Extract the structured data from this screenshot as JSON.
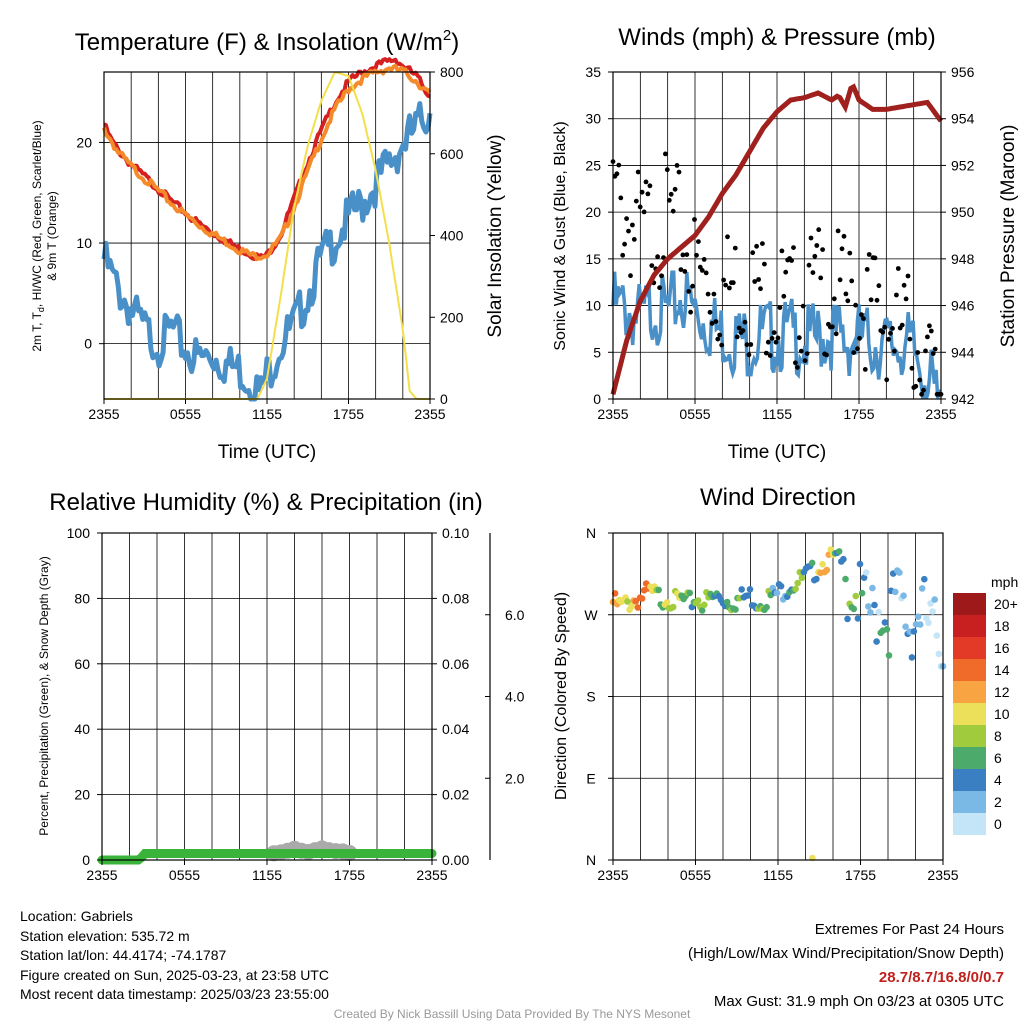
{
  "chart_data": [
    {
      "type": "line",
      "title_main": "Temperature (F) & Insolation (W/m",
      "title_sup": "2",
      "title_end": ")",
      "xlabel": "Time (UTC)",
      "ylabel_left_1": "2m T, T",
      "ylabel_left_sub": "d",
      "ylabel_left_2": ", HI/WC (Red, Green, Scarlet/Blue)",
      "ylabel_left_3": "& 9m T (Orange)",
      "ylabel_right": "Solar Insolation (Yellow)",
      "x_ticks": [
        "2355",
        "0555",
        "1155",
        "1755",
        "2355"
      ],
      "x_hours": [
        0,
        24
      ],
      "ylim": [
        -5.5,
        27
      ],
      "y_ticks": [
        0,
        10,
        20
      ],
      "y2lim": [
        0,
        800
      ],
      "y2_ticks": [
        0,
        200,
        400,
        600,
        800
      ],
      "series": [
        {
          "color": "#d42020",
          "x": [
            0,
            0.5,
            1,
            2,
            3,
            4,
            5,
            6,
            7,
            8,
            9,
            10,
            11,
            11.5,
            12,
            13,
            14,
            15,
            16,
            17,
            18,
            19,
            20,
            21,
            21.5,
            22,
            23,
            24
          ],
          "values": [
            22,
            20.5,
            19.5,
            18,
            16.8,
            15.6,
            14.3,
            13.2,
            12.1,
            11.2,
            10.4,
            9.6,
            9.0,
            8.7,
            9.0,
            11.0,
            14.6,
            18.2,
            21.4,
            24.2,
            26.2,
            27.2,
            27.8,
            28.3,
            28.5,
            27.8,
            26.8,
            24.8
          ]
        },
        {
          "color": "#f58a2a",
          "x": [
            0,
            1,
            2,
            3,
            4,
            5,
            6,
            7,
            8,
            9,
            10,
            11,
            12,
            13,
            14,
            15,
            16,
            17,
            18,
            19,
            20,
            21,
            22,
            23,
            24
          ],
          "values": [
            21.6,
            19.3,
            17.8,
            16.6,
            15.4,
            14.1,
            13.0,
            12.0,
            11.1,
            10.3,
            9.5,
            8.9,
            9.1,
            10.6,
            13.8,
            17.3,
            20.6,
            23.5,
            25.5,
            26.5,
            27.2,
            27.6,
            27.3,
            26.3,
            24.9
          ]
        },
        {
          "color": "#4a90c8",
          "x": [
            0,
            0.5,
            1,
            2,
            3,
            4,
            5,
            6,
            7,
            8,
            9,
            10,
            11,
            11.5,
            12,
            13,
            14,
            15,
            16,
            17,
            18,
            19,
            20,
            21,
            22,
            23,
            23.5,
            24
          ],
          "values": [
            9.5,
            8,
            6.5,
            4.5,
            2.5,
            1,
            2.5,
            0.5,
            -0.5,
            0,
            -1,
            -1.5,
            -3,
            -4,
            -2,
            1,
            3,
            6,
            9.5,
            11.5,
            13.5,
            15,
            17,
            19,
            21,
            22.5,
            23.5,
            24.2
          ]
        },
        {
          "color": "#f4df4a",
          "axis": "right",
          "x": [
            0,
            2,
            4,
            6,
            8,
            10,
            11.3,
            12,
            13,
            14,
            15,
            16,
            17,
            18,
            19,
            20,
            21,
            22,
            22.5,
            23,
            24
          ],
          "values": [
            0,
            0,
            0,
            0,
            0,
            0,
            0,
            50,
            250,
            470,
            620,
            730,
            800,
            790,
            700,
            560,
            380,
            170,
            20,
            0,
            0
          ]
        }
      ]
    },
    {
      "type": "scatter",
      "title": "Winds (mph) & Pressure (mb)",
      "xlabel": "Time (UTC)",
      "ylabel": "Sonic Wind & Gust (Blue, Black)",
      "ylabel_right": "Station Pressure (Maroon)",
      "x_ticks": [
        "2355",
        "0555",
        "1155",
        "1755",
        "2355"
      ],
      "x_hours": [
        0,
        24
      ],
      "ylim": [
        0,
        35
      ],
      "y_ticks": [
        0,
        5,
        10,
        15,
        20,
        25,
        30,
        35
      ],
      "y2lim": [
        942,
        956
      ],
      "y2_ticks": [
        942,
        944,
        946,
        948,
        950,
        952,
        954,
        956
      ],
      "series": [
        {
          "name": "pressure",
          "color": "#a0201e",
          "axis": "right",
          "x": [
            0,
            1,
            2,
            3,
            4,
            5,
            6,
            7,
            8,
            9,
            10,
            11,
            12,
            13,
            14,
            15,
            16,
            16.5,
            17,
            17.5,
            18,
            19,
            20,
            21,
            22,
            23,
            24
          ],
          "values": [
            942.2,
            944.5,
            946.2,
            947.3,
            948,
            948.5,
            949,
            949.8,
            950.8,
            951.6,
            952.6,
            953.6,
            954.3,
            954.8,
            954.9,
            955.1,
            954.8,
            955.0,
            954.5,
            955.5,
            954.8,
            954.4,
            954.4,
            954.5,
            954.6,
            954.7,
            953.9
          ]
        },
        {
          "name": "wind",
          "color": "#4a90c8",
          "x": [
            0,
            1,
            2,
            3,
            4,
            5,
            6,
            7,
            8,
            9,
            10,
            11,
            12,
            13,
            14,
            15,
            16,
            17,
            18,
            19,
            20,
            21,
            22,
            23,
            24
          ],
          "values": [
            12,
            11.5,
            10.5,
            12,
            11,
            13,
            11.5,
            10,
            9,
            8.5,
            8,
            9,
            8.5,
            9,
            8,
            8.5,
            9,
            8,
            8.5,
            8,
            7.5,
            8,
            7,
            4.5,
            0.5
          ]
        },
        {
          "name": "gust",
          "color": "#000000",
          "x": [
            0,
            1,
            2,
            3,
            4,
            5,
            6,
            7,
            8,
            9,
            10,
            11,
            12,
            13,
            14,
            15,
            16,
            17,
            18,
            19,
            20,
            21,
            22,
            23,
            24
          ],
          "values": [
            25,
            23,
            21,
            22,
            23,
            21,
            17,
            16,
            15,
            15.5,
            15,
            15,
            14,
            13,
            14,
            15,
            15,
            14,
            14,
            13,
            12,
            11,
            10,
            7,
            2
          ]
        }
      ]
    },
    {
      "type": "line",
      "title": "Relative Humidity (%) & Precipitation (in)",
      "ylabel": "Percent, Precipitation (Green), & Snow Depth (Gray)",
      "x_ticks": [
        "2355",
        "0555",
        "1155",
        "1755",
        "2355"
      ],
      "x_hours": [
        0,
        24
      ],
      "ylim": [
        0,
        100
      ],
      "y_ticks": [
        0,
        20,
        40,
        60,
        80,
        100
      ],
      "y2lim": [
        0,
        0.1
      ],
      "y2_ticks": [
        "0.00",
        "0.02",
        "0.04",
        "0.06",
        "0.08",
        "0.10"
      ],
      "y3lim": [
        0,
        8
      ],
      "y3_ticks": [
        "2.0",
        "4.0",
        "6.0"
      ],
      "series": [
        {
          "color": "#3ab33a",
          "x": [
            0,
            2.8,
            3,
            24
          ],
          "values": [
            0,
            0,
            2,
            2
          ]
        },
        {
          "color": "#aaaaaa",
          "x": [
            12.5,
            13,
            13.5,
            14,
            14.5,
            15,
            15.5,
            16,
            16.5,
            17,
            17.5,
            18
          ],
          "values": [
            0.2,
            0.5,
            1,
            1.6,
            1.0,
            0.6,
            1.2,
            1.7,
            1.2,
            0.9,
            0.8,
            0.3
          ]
        }
      ]
    },
    {
      "type": "scatter",
      "title": "Wind Direction",
      "ylabel": "Direction (Colored By Speed)",
      "x_ticks": [
        "2355",
        "0555",
        "1155",
        "1755",
        "2355"
      ],
      "x_hours": [
        0,
        24
      ],
      "y_ticks": [
        "N",
        "W",
        "S",
        "E",
        "N"
      ],
      "ylim": [
        0,
        360
      ],
      "colorbar_title": "mph",
      "colorbar_labels": [
        "20+",
        "18",
        "16",
        "14",
        "12",
        "10",
        "8",
        "6",
        "4",
        "2",
        "0"
      ],
      "colorbar_colors": [
        "#9e1a1a",
        "#c82020",
        "#e23a26",
        "#f06a2a",
        "#f9a443",
        "#ece05a",
        "#9fcb3c",
        "#4cab6a",
        "#3a7fc2",
        "#7ab8e6",
        "#c4e5f7"
      ],
      "series": [
        {
          "name": "direction",
          "x": [
            0,
            0.5,
            1,
            1.5,
            2,
            2.5,
            3,
            3.5,
            4,
            4.5,
            5,
            5.5,
            6,
            6.5,
            7,
            7.5,
            8,
            8.5,
            9,
            9.5,
            10,
            10.5,
            11,
            11.5,
            12,
            12.5,
            13,
            13.5,
            14,
            14.5,
            15,
            15.5,
            16,
            16.5,
            17,
            17.5,
            18,
            18.5,
            19,
            19.5,
            20,
            20.5,
            21,
            21.5,
            22,
            22.5,
            23,
            23.5,
            24
          ],
          "values": [
            290,
            285,
            288,
            292,
            295,
            300,
            298,
            294,
            296,
            290,
            292,
            288,
            294,
            290,
            292,
            296,
            294,
            290,
            292,
            295,
            297,
            290,
            293,
            296,
            300,
            305,
            310,
            312,
            318,
            322,
            330,
            335,
            338,
            334,
            325,
            318,
            305,
            296,
            288,
            300,
            280,
            310,
            300,
            275,
            285,
            300,
            275,
            270,
            260
          ],
          "speeds": [
            13,
            13,
            12,
            12,
            14,
            14,
            13,
            10,
            9,
            8,
            9,
            9,
            8,
            8,
            9,
            8,
            8,
            7,
            8,
            7,
            8,
            7,
            7,
            7,
            7,
            6,
            6,
            7,
            8,
            7,
            10,
            11,
            10,
            8,
            7,
            6,
            5,
            4,
            6,
            5,
            5,
            4,
            4,
            5,
            3,
            2,
            2,
            3,
            2
          ]
        }
      ]
    }
  ],
  "info": {
    "location": "Location: Gabriels",
    "elevation": "Station elevation: 535.72 m",
    "latlon": "Station lat/lon: 44.4174; -74.1787",
    "created": "Figure created on Sun, 2025-03-23, at 23:58 UTC",
    "recent": "Most recent data timestamp: 2025/03/23 23:55:00"
  },
  "extremes": {
    "title": "Extremes For Past 24 Hours",
    "subtitle": "(High/Low/Max Wind/Precipitation/Snow Depth)",
    "values": "28.7/8.7/16.8/0/0.7",
    "gust": "Max Gust: 31.9 mph On 03/23 at 0305 UTC"
  },
  "credit": "Created By Nick Bassill Using Data Provided By The NYS Mesonet"
}
